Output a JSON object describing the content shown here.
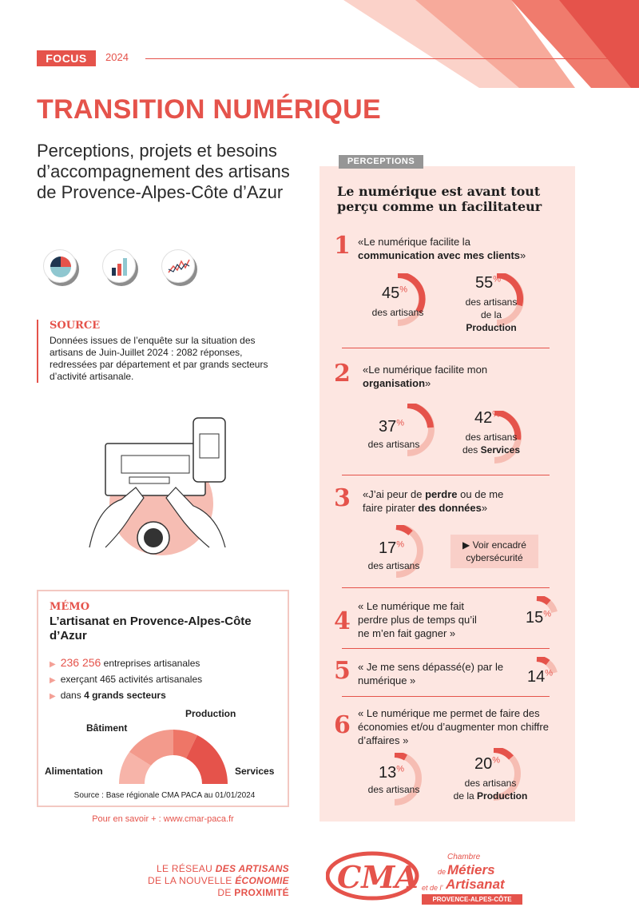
{
  "header": {
    "tag": "FOCUS",
    "year": "2024",
    "title": "TRANSITION NUMÉRIQUE",
    "subtitle": "Perceptions, projets et besoins d’accompagnement des artisans de Provence-Alpes-Côte d’Azur"
  },
  "source": {
    "title": "SOURCE",
    "text": "Données issues de l’enquête sur la situation des artisans de Juin-Juillet 2024 : 2082 réponses, redressées par département et par grands secteurs d’activité artisanale."
  },
  "memo": {
    "tag": "MÉMO",
    "title": "L’artisanat en Provence-Alpes-Côte d’Azur",
    "items": [
      {
        "value": "236 256",
        "text": " entreprises artisanales"
      },
      {
        "text": "exerçant 465 activités artisanales"
      },
      {
        "text": "dans ",
        "bold": "4 grands secteurs"
      }
    ],
    "sectors": [
      "Alimentation",
      "Bâtiment",
      "Production",
      "Services"
    ],
    "source": "Source : Base régionale CMA PACA au 01/01/2024"
  },
  "more": "Pour en savoir + : www.cmar-paca.fr",
  "perceptions": {
    "tag": "PERCEPTIONS",
    "title": "Le numérique est avant tout perçu comme un facilitateur",
    "items": [
      {
        "n": "1",
        "q1": "«Le numérique facilite la",
        "q2": "communication avec mes clients",
        "q3": "»",
        "stats": [
          {
            "v": 45,
            "l1": "des artisans",
            "l2": ""
          },
          {
            "v": 55,
            "l1": "des artisans",
            "l2pre": "de la ",
            "l2b": "Production"
          }
        ]
      },
      {
        "n": "2",
        "q1": "«Le numérique facilite mon",
        "q2": "organisation",
        "q3": "»",
        "stats": [
          {
            "v": 37,
            "l1": "des artisans",
            "l2": ""
          },
          {
            "v": 42,
            "l1": "des artisans",
            "l2pre": "des ",
            "l2b": "Services"
          }
        ]
      },
      {
        "n": "3",
        "q1": "«J’ai peur de ",
        "q1b": "perdre",
        "q1c": " ou de me",
        "q2pre": "faire pirater ",
        "q2": "des données",
        "q3": "»",
        "stats": [
          {
            "v": 17,
            "l1": "des artisans"
          }
        ],
        "voir": "▶ Voir encadré cybersécurité"
      },
      {
        "n": "4",
        "q": "« Le numérique me fait perdre plus de temps qu’il ne m’en fait gagner »",
        "v": 15
      },
      {
        "n": "5",
        "q": "« Je me sens dépassé(e) par le numérique »",
        "v": 14
      },
      {
        "n": "6",
        "q": "« Le numérique me permet de faire des économies et/ou d’augmenter mon chiffre d’affaires »",
        "stats": [
          {
            "v": 13,
            "l1": "des artisans"
          },
          {
            "v": 20,
            "l1": "des artisans",
            "l2pre": "de la ",
            "l2b": "Production"
          }
        ]
      }
    ],
    "pct_sign": "%"
  },
  "footer": {
    "l1a": "LE RÉSEAU ",
    "l1b": "DES ARTISANS",
    "l2a": "DE LA NOUVELLE ",
    "l2b": "ÉCONOMIE",
    "l3a": "DE ",
    "l3b": "PROXIMITÉ",
    "logo_text": "CMA",
    "chambre": "Chambre",
    "de": "de",
    "metiers": "Métiers",
    "etde": "et de l’",
    "artisanat": "Artisanat",
    "region": "PROVENCE-ALPES-CÔTE D’AZUR"
  },
  "colors": {
    "accent": "#e5534b",
    "panel": "#fde6e1",
    "light": "#f4a096"
  }
}
